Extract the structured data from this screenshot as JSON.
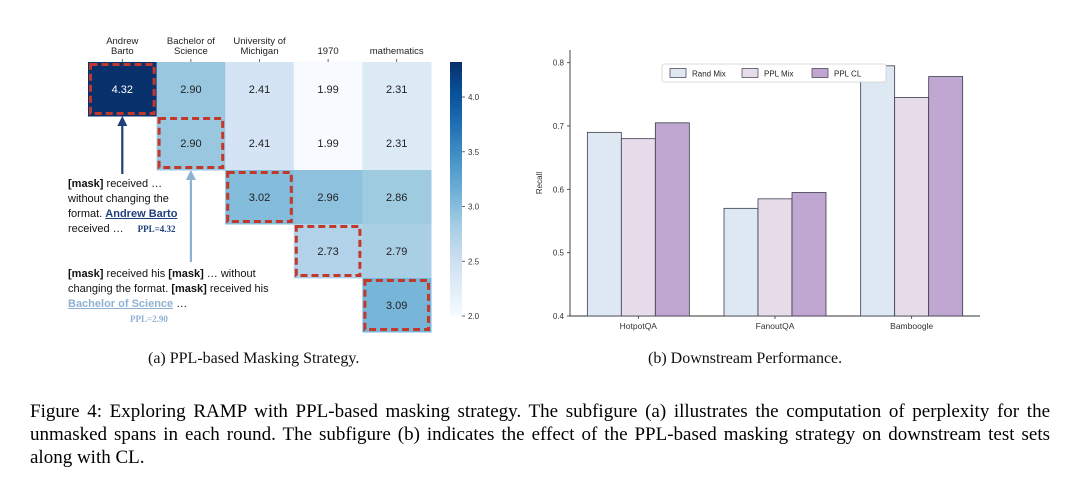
{
  "figure": {
    "caption": "Figure 4: Exploring RAMP with PPL-based masking strategy. The subfigure (a) illustrates the computation of perplexity for the unmasked spans in each round. The subfigure (b) indicates the effect of the PPL-based masking strategy on downstream test sets along with CL."
  },
  "subfigure_a": {
    "caption": "(a) PPL-based Masking Strategy.",
    "annotations": [
      {
        "mask1": "[mask]",
        "text1": " received …",
        "line2": "without changing the",
        "text3a": "format. ",
        "highlight": "Andrew Barto",
        "line4": "received …",
        "ppl": "PPL=4.32"
      },
      {
        "mask1": "[mask]",
        "text1": " received his ",
        "mask2": "[mask]",
        "text2": " … without",
        "line2a": "changing the format. ",
        "mask3": "[mask]",
        "line2b": " received his",
        "highlight": "Bachelor of Science",
        "after_highlight": " …",
        "ppl": "PPL=2.90"
      }
    ]
  },
  "subfigure_b": {
    "caption": "(b) Downstream Performance."
  },
  "chart_data": [
    {
      "type": "heatmap",
      "x_labels": [
        [
          "Andrew",
          "Barto"
        ],
        [
          "Bachelor of",
          "Science"
        ],
        [
          "University of",
          "Michigan"
        ],
        [
          "1970"
        ],
        [
          "mathematics"
        ]
      ],
      "matrix": [
        [
          4.32,
          2.9,
          2.41,
          1.99,
          2.31
        ],
        [
          null,
          2.9,
          2.41,
          1.99,
          2.31
        ],
        [
          null,
          null,
          3.02,
          2.96,
          2.86
        ],
        [
          null,
          null,
          null,
          2.73,
          2.79
        ],
        [
          null,
          null,
          null,
          null,
          3.09
        ]
      ],
      "cell_labels": [
        [
          "4.32",
          "2.90",
          "2.41",
          "1.99",
          "2.31"
        ],
        [
          "",
          "2.90",
          "2.41",
          "1.99",
          "2.31"
        ],
        [
          "",
          "",
          "3.02",
          "2.96",
          "2.86"
        ],
        [
          "",
          "",
          "",
          "2.73",
          "2.79"
        ],
        [
          "",
          "",
          "",
          "",
          "3.09"
        ]
      ],
      "highlighted_cells": [
        [
          0,
          0
        ],
        [
          1,
          1
        ],
        [
          2,
          2
        ],
        [
          3,
          3
        ],
        [
          4,
          4
        ]
      ],
      "colorbar": {
        "range": [
          2.0,
          4.32
        ],
        "ticks": [
          2.0,
          2.5,
          3.0,
          3.5,
          4.0
        ],
        "tick_labels": [
          "2.0",
          "2.5",
          "3.0",
          "3.5",
          "4.0"
        ]
      },
      "colors": {
        "low": "#f7fbff",
        "high": "#08306b",
        "highlight_border": "#c0392b"
      }
    },
    {
      "type": "bar",
      "categories": [
        "HotpotQA",
        "FanoutQA",
        "Bamboogle"
      ],
      "series": [
        {
          "name": "Rand Mix",
          "values": [
            0.69,
            0.57,
            0.795
          ],
          "color": "#dde8f3"
        },
        {
          "name": "PPL Mix",
          "values": [
            0.68,
            0.585,
            0.745
          ],
          "color": "#e6dcea"
        },
        {
          "name": "PPL CL",
          "values": [
            0.705,
            0.595,
            0.778
          ],
          "color": "#bfa7d1"
        }
      ],
      "ylabel": "Recall",
      "ylim": [
        0.4,
        0.82
      ],
      "yticks": [
        0.4,
        0.5,
        0.6,
        0.7,
        0.8
      ],
      "ytick_labels": [
        "0.4",
        "0.5",
        "0.6",
        "0.7",
        "0.8"
      ],
      "legend_placement": "top-center",
      "grid": false
    }
  ]
}
